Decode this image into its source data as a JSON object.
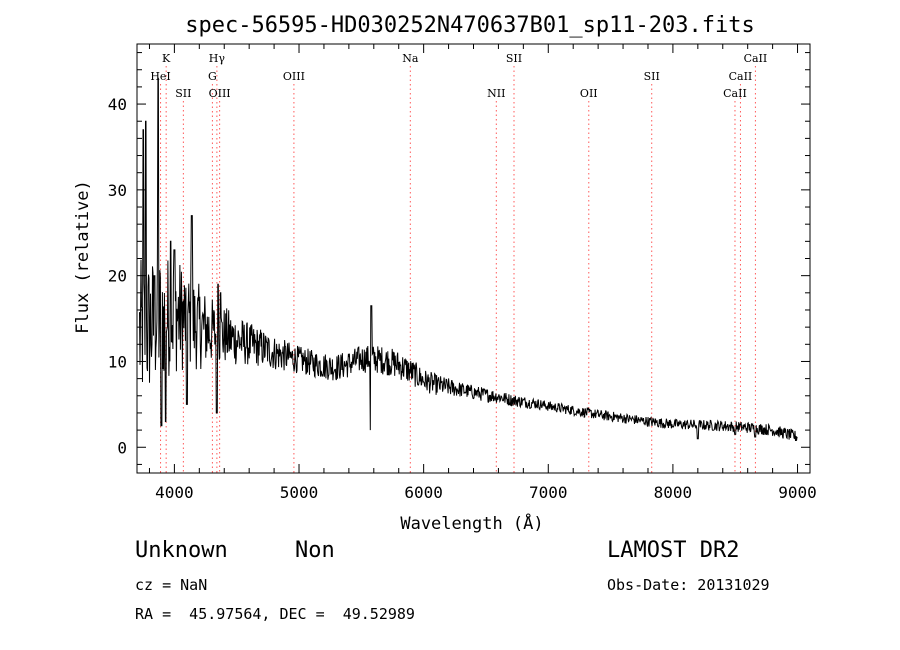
{
  "chart_data": {
    "type": "line",
    "title": "spec-56595-HD030252N470637B01_sp11-203.fits",
    "xlabel": "Wavelength (Å)",
    "ylabel": "Flux (relative)",
    "xlim": [
      3700,
      9100
    ],
    "ylim": [
      -3,
      47
    ],
    "xticks": [
      4000,
      5000,
      6000,
      7000,
      8000,
      9000
    ],
    "yticks": [
      0,
      10,
      20,
      30,
      40
    ],
    "grid": false,
    "line_color": "#000000",
    "marker_color": "#ff5a5a",
    "continuum_points": [
      [
        3720,
        13
      ],
      [
        3800,
        14
      ],
      [
        3900,
        15
      ],
      [
        4000,
        15.5
      ],
      [
        4100,
        15
      ],
      [
        4200,
        14
      ],
      [
        4300,
        13.5
      ],
      [
        4400,
        13
      ],
      [
        4500,
        12.5
      ],
      [
        4600,
        12
      ],
      [
        4700,
        11.6
      ],
      [
        4800,
        11
      ],
      [
        4900,
        10.6
      ],
      [
        5000,
        10.2
      ],
      [
        5100,
        9.8
      ],
      [
        5200,
        9.5
      ],
      [
        5300,
        9.3
      ],
      [
        5400,
        9.7
      ],
      [
        5500,
        10.3
      ],
      [
        5600,
        10.3
      ],
      [
        5700,
        10.1
      ],
      [
        5800,
        9.6
      ],
      [
        5900,
        8.8
      ],
      [
        6000,
        7.8
      ],
      [
        6100,
        7.3
      ],
      [
        6200,
        7
      ],
      [
        6300,
        6.7
      ],
      [
        6400,
        6.4
      ],
      [
        6500,
        6.1
      ],
      [
        6600,
        5.9
      ],
      [
        6700,
        5.5
      ],
      [
        6800,
        5.3
      ],
      [
        6900,
        5.1
      ],
      [
        7000,
        4.8
      ],
      [
        7200,
        4.3
      ],
      [
        7400,
        3.8
      ],
      [
        7600,
        3.4
      ],
      [
        7800,
        3
      ],
      [
        8000,
        2.7
      ],
      [
        8200,
        2.6
      ],
      [
        8400,
        2.5
      ],
      [
        8600,
        2.3
      ],
      [
        8800,
        2
      ],
      [
        9000,
        1.2
      ]
    ],
    "features": [
      [
        3750,
        37
      ],
      [
        3770,
        38
      ],
      [
        3840,
        20
      ],
      [
        3870,
        43
      ],
      [
        3895,
        2.5
      ],
      [
        3930,
        3
      ],
      [
        3970,
        24
      ],
      [
        4000,
        23
      ],
      [
        4100,
        5
      ],
      [
        4140,
        27
      ],
      [
        4340,
        4
      ],
      [
        4350,
        19
      ],
      [
        4370,
        18
      ],
      [
        5577,
        2
      ],
      [
        5580,
        16.5
      ],
      [
        8200,
        1
      ],
      [
        8500,
        1.5
      ],
      [
        8660,
        1.2
      ]
    ],
    "noise_amplitude": [
      [
        3700,
        9
      ],
      [
        4000,
        7
      ],
      [
        4300,
        4
      ],
      [
        4600,
        2.5
      ],
      [
        5000,
        1.6
      ],
      [
        5400,
        1.6
      ],
      [
        5800,
        1.7
      ],
      [
        6300,
        0.9
      ],
      [
        7000,
        0.6
      ],
      [
        8000,
        0.6
      ],
      [
        9000,
        0.7
      ]
    ],
    "line_markers": [
      {
        "label": "K",
        "wavelength": 3934,
        "row": 1
      },
      {
        "label": "HeI",
        "wavelength": 3889,
        "row": 2
      },
      {
        "label": "SII",
        "wavelength": 4072,
        "row": 3
      },
      {
        "label": "Hγ",
        "wavelength": 4341,
        "row": 1
      },
      {
        "label": "G",
        "wavelength": 4305,
        "row": 2
      },
      {
        "label": "OIII",
        "wavelength": 4363,
        "row": 3
      },
      {
        "label": "OIII",
        "wavelength": 4959,
        "row": 2
      },
      {
        "label": "Na",
        "wavelength": 5893,
        "row": 1
      },
      {
        "label": "SII",
        "wavelength": 6725,
        "row": 1
      },
      {
        "label": "NII",
        "wavelength": 6583,
        "row": 3
      },
      {
        "label": "OII",
        "wavelength": 7325,
        "row": 3
      },
      {
        "label": "SII",
        "wavelength": 7830,
        "row": 2
      },
      {
        "label": "CaII",
        "wavelength": 8662,
        "row": 1
      },
      {
        "label": "CaII",
        "wavelength": 8542,
        "row": 2
      },
      {
        "label": "CaII",
        "wavelength": 8498,
        "row": 3
      }
    ]
  },
  "info": {
    "class_name": "Unknown",
    "subclass": "Non",
    "survey": "LAMOST DR2",
    "cz": "cz = NaN",
    "obs_date": "Obs-Date: 20131029",
    "coords": "RA =  45.97564, DEC =  49.52989"
  }
}
